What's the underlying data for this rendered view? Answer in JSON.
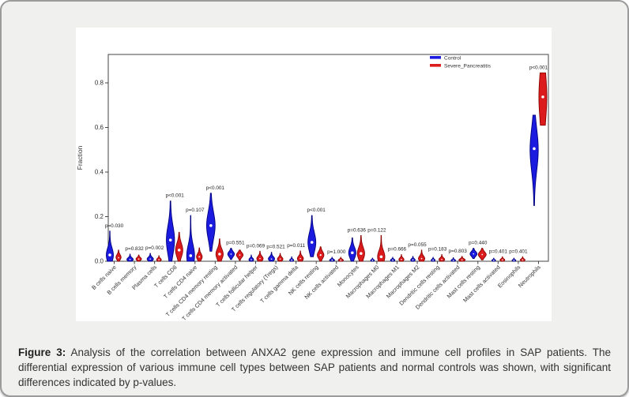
{
  "caption": {
    "label": "Figure 3:",
    "text": "Analysis of the correlation between ANXA2 gene expression and immune cell profiles in SAP patients. The differential expression of various immune cell types between SAP patients and normal controls was shown, with significant differences indicated by p-values."
  },
  "chart_data": {
    "type": "violin",
    "ylabel": "Fraction",
    "yticks": [
      0.0,
      0.2,
      0.4,
      0.6,
      0.8
    ],
    "ylim": [
      0,
      0.93
    ],
    "grid": false,
    "legend_position": "top-right-inside",
    "legend": [
      {
        "name": "Control",
        "color": "#1b1bdf",
        "edge": "#000080"
      },
      {
        "name": "Severe_Pancreatitis",
        "color": "#dc1c1c",
        "edge": "#8b0000"
      }
    ],
    "groups": [
      {
        "category": "B cells naive",
        "p": "p=0.030",
        "control": {
          "min": 0,
          "max": 0.135,
          "mode": 0.028,
          "dot": 0.028,
          "hw": 4.5
        },
        "sap": {
          "min": 0,
          "max": 0.05,
          "mode": 0.018,
          "dot": 0.016,
          "hw": 3.2
        }
      },
      {
        "category": "B cells memory",
        "p": "p=0.832",
        "control": {
          "min": 0,
          "max": 0.032,
          "mode": 0.008,
          "dot": 0.008,
          "hw": 4.0
        },
        "sap": {
          "min": 0,
          "max": 0.028,
          "mode": 0.01,
          "dot": 0.01,
          "hw": 3.5
        }
      },
      {
        "category": "Plasma cells",
        "p": "p=0.002",
        "control": {
          "min": 0,
          "max": 0.035,
          "mode": 0.01,
          "dot": 0.01,
          "hw": 4.0
        },
        "sap": {
          "min": 0,
          "max": 0.025,
          "mode": 0.007,
          "dot": 0.007,
          "hw": 3.0
        }
      },
      {
        "category": "T cells CD8",
        "p": "p<0.001",
        "control": {
          "min": 0,
          "max": 0.27,
          "mode": 0.095,
          "dot": 0.095,
          "hw": 5.2
        },
        "sap": {
          "min": 0,
          "max": 0.13,
          "mode": 0.05,
          "dot": 0.05,
          "hw": 4.6
        }
      },
      {
        "category": "T cells CD4 naive",
        "p": "p=0.107",
        "control": {
          "min": 0,
          "max": 0.205,
          "mode": 0.025,
          "dot": 0.025,
          "hw": 5.0
        },
        "sap": {
          "min": 0,
          "max": 0.06,
          "mode": 0.02,
          "dot": 0.02,
          "hw": 3.6
        }
      },
      {
        "category": "T cells CD4 memory resting",
        "p": "p<0.001",
        "control": {
          "min": 0.045,
          "max": 0.305,
          "mode": 0.16,
          "dot": 0.16,
          "hw": 5.4
        },
        "sap": {
          "min": 0,
          "max": 0.1,
          "mode": 0.032,
          "dot": 0.032,
          "hw": 4.6
        }
      },
      {
        "category": "T cells CD4 memory activated",
        "p": "p=0.551",
        "control": {
          "min": 0.008,
          "max": 0.058,
          "mode": 0.032,
          "dot": 0.032,
          "hw": 4.2
        },
        "sap": {
          "min": 0.004,
          "max": 0.05,
          "mode": 0.028,
          "dot": 0.028,
          "hw": 4.2
        }
      },
      {
        "category": "T cells follicular helper",
        "p": "p=0.069",
        "control": {
          "min": 0,
          "max": 0.028,
          "mode": 0.007,
          "dot": 0.007,
          "hw": 3.0
        },
        "sap": {
          "min": 0,
          "max": 0.045,
          "mode": 0.012,
          "dot": 0.012,
          "hw": 4.0
        }
      },
      {
        "category": "T cells regulatory (Tregs)",
        "p": "p=0.521",
        "control": {
          "min": 0,
          "max": 0.04,
          "mode": 0.011,
          "dot": 0.01,
          "hw": 4.0
        },
        "sap": {
          "min": 0,
          "max": 0.035,
          "mode": 0.01,
          "dot": 0.01,
          "hw": 3.5
        }
      },
      {
        "category": "T cells gamma delta",
        "p": "p=0.011",
        "control": {
          "min": 0,
          "max": 0.02,
          "mode": 0.005,
          "dot": 0.005,
          "hw": 2.5
        },
        "sap": {
          "min": 0,
          "max": 0.046,
          "mode": 0.012,
          "dot": 0.012,
          "hw": 3.8
        }
      },
      {
        "category": "NK cells resting",
        "p": "p<0.001",
        "control": {
          "min": 0.02,
          "max": 0.205,
          "mode": 0.085,
          "dot": 0.085,
          "hw": 5.0
        },
        "sap": {
          "min": 0,
          "max": 0.065,
          "mode": 0.028,
          "dot": 0.028,
          "hw": 4.2
        }
      },
      {
        "category": "NK cells activated",
        "p": "p=1.000",
        "control": {
          "min": 0,
          "max": 0.018,
          "mode": 0.005,
          "dot": 0.005,
          "hw": 3.2
        },
        "sap": {
          "min": 0,
          "max": 0.018,
          "mode": 0.005,
          "dot": 0.005,
          "hw": 3.2
        }
      },
      {
        "category": "Monocytes",
        "p": "p=0.636",
        "control": {
          "min": 0,
          "max": 0.105,
          "mode": 0.038,
          "dot": 0.038,
          "hw": 4.6
        },
        "sap": {
          "min": 0,
          "max": 0.115,
          "mode": 0.035,
          "dot": 0.035,
          "hw": 4.6
        }
      },
      {
        "category": "Macrophages M0",
        "p": "p=0.122",
        "control": {
          "min": 0,
          "max": 0.014,
          "mode": 0.004,
          "dot": 0.004,
          "hw": 2.4
        },
        "sap": {
          "min": 0,
          "max": 0.115,
          "mode": 0.02,
          "dot": 0.02,
          "hw": 4.6
        }
      },
      {
        "category": "Macrophages M1",
        "p": "p=0.666",
        "control": {
          "min": 0,
          "max": 0.018,
          "mode": 0.005,
          "dot": 0.005,
          "hw": 2.8
        },
        "sap": {
          "min": 0,
          "max": 0.03,
          "mode": 0.008,
          "dot": 0.008,
          "hw": 3.2
        }
      },
      {
        "category": "Macrophages M2",
        "p": "p=0.055",
        "control": {
          "min": 0,
          "max": 0.022,
          "mode": 0.006,
          "dot": 0.006,
          "hw": 2.8
        },
        "sap": {
          "min": 0,
          "max": 0.05,
          "mode": 0.012,
          "dot": 0.012,
          "hw": 4.0
        }
      },
      {
        "category": "Dendritic cells resting",
        "p": "p=0.183",
        "control": {
          "min": 0,
          "max": 0.018,
          "mode": 0.005,
          "dot": 0.005,
          "hw": 2.5
        },
        "sap": {
          "min": 0,
          "max": 0.03,
          "mode": 0.008,
          "dot": 0.008,
          "hw": 3.6
        }
      },
      {
        "category": "Dendritic cells activated",
        "p": "p=0.803",
        "control": {
          "min": 0,
          "max": 0.016,
          "mode": 0.004,
          "dot": 0.004,
          "hw": 2.8
        },
        "sap": {
          "min": 0,
          "max": 0.022,
          "mode": 0.006,
          "dot": 0.006,
          "hw": 4.0
        }
      },
      {
        "category": "Mast cells resting",
        "p": "p=0.440",
        "control": {
          "min": 0.012,
          "max": 0.058,
          "mode": 0.033,
          "dot": 0.033,
          "hw": 4.4
        },
        "sap": {
          "min": 0.006,
          "max": 0.058,
          "mode": 0.03,
          "dot": 0.03,
          "hw": 5.0
        }
      },
      {
        "category": "Mast cells activated",
        "p": "p=0.401",
        "control": {
          "min": 0,
          "max": 0.014,
          "mode": 0.004,
          "dot": 0.004,
          "hw": 2.4
        },
        "sap": {
          "min": 0,
          "max": 0.02,
          "mode": 0.006,
          "dot": 0.006,
          "hw": 3.0
        }
      },
      {
        "category": "Eosinophils",
        "p": "p=0.401",
        "control": {
          "min": 0,
          "max": 0.014,
          "mode": 0.004,
          "dot": 0.004,
          "hw": 2.4
        },
        "sap": {
          "min": 0,
          "max": 0.02,
          "mode": 0.006,
          "dot": 0.006,
          "hw": 3.0
        }
      },
      {
        "category": "Neutrophils",
        "p": "p<0.001",
        "control": {
          "min": 0.25,
          "max": 0.655,
          "mode": 0.5,
          "dot": 0.505,
          "hw": 5.2
        },
        "sap": {
          "min": 0.61,
          "max": 0.845,
          "mode": 0.737,
          "dot": 0.737,
          "hw": 5.0,
          "shape": "bar"
        }
      }
    ]
  },
  "colors": {
    "card_bg": "#f0f0ef",
    "panel_bg": "#ffffff",
    "axis": "#444444",
    "text": "#333333"
  }
}
